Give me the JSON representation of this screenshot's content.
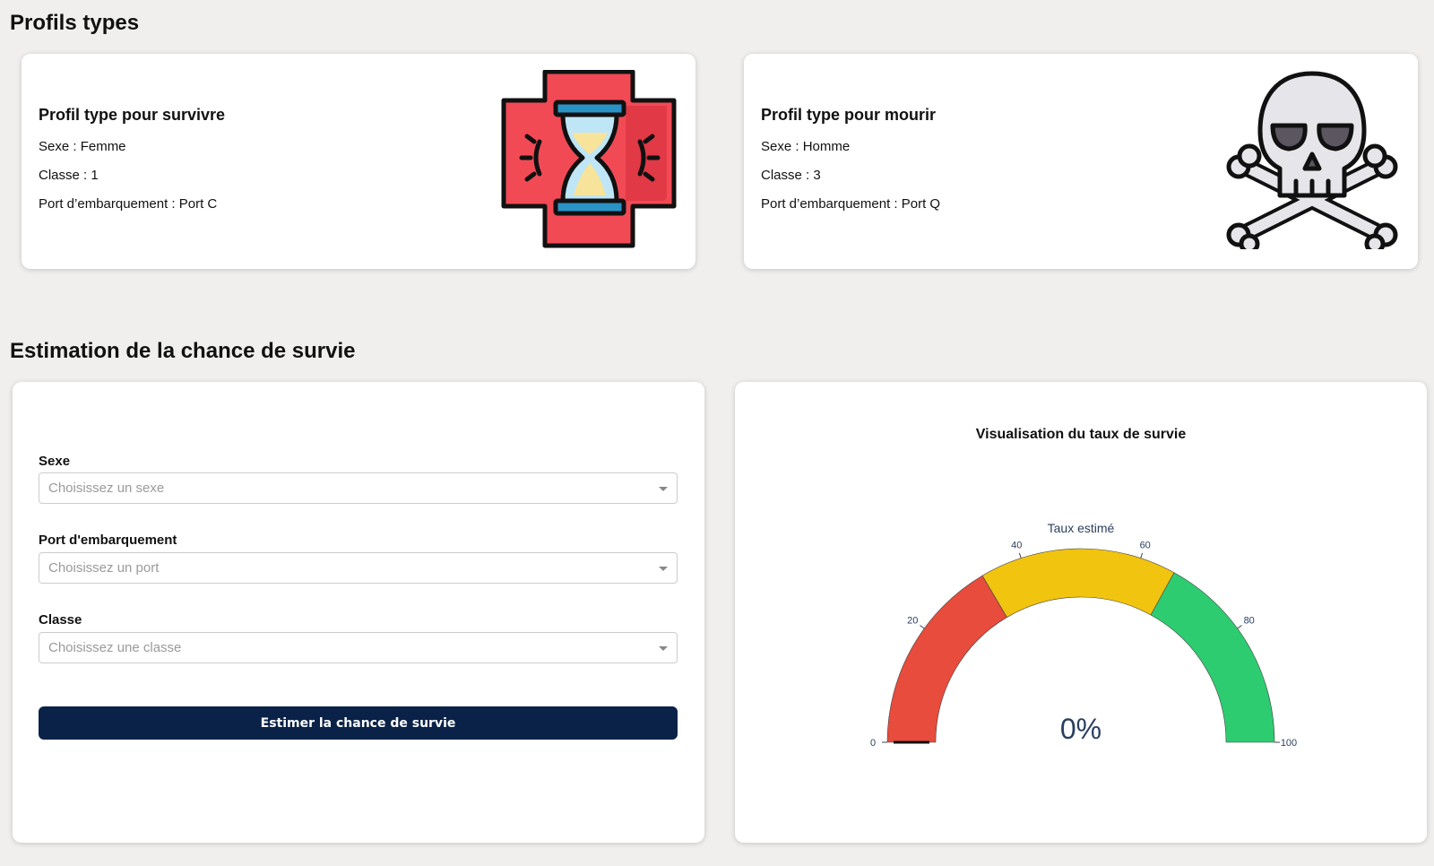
{
  "profils": {
    "heading": "Profils types",
    "survive": {
      "title": "Profil type pour survivre",
      "sexe": "Sexe : Femme",
      "classe": "Classe : 1",
      "port": "Port d’embarquement : Port C",
      "icon": "medical-cross-hourglass-icon"
    },
    "die": {
      "title": "Profil type pour mourir",
      "sexe": "Sexe : Homme",
      "classe": "Classe : 3",
      "port": "Port d’embarquement : Port Q",
      "icon": "skull-crossbones-icon"
    }
  },
  "estimation": {
    "heading": "Estimation de la chance de survie",
    "form": {
      "sexe_label": "Sexe",
      "sexe_placeholder": "Choisissez un sexe",
      "port_label": "Port d'embarquement",
      "port_placeholder": "Choisissez un port",
      "classe_label": "Classe",
      "classe_placeholder": "Choisissez une classe",
      "submit_label": "Estimer la chance de survie"
    },
    "gauge_card_title": "Visualisation du taux de survie"
  },
  "colors": {
    "accent": "#0a2248",
    "low": "#e74c3c",
    "mid": "#f1c40f",
    "high": "#2ecc71",
    "gauge_text": "#2a3f5f"
  },
  "chart_data": {
    "type": "gauge",
    "title": "Taux estimé",
    "value": 0,
    "value_text": "0%",
    "range": [
      0,
      100
    ],
    "ticks": [
      0,
      20,
      40,
      60,
      80,
      100
    ],
    "tick_labels": [
      "0",
      "20",
      "40",
      "60",
      "80",
      "100"
    ],
    "steps": [
      {
        "from": 0,
        "to": 33,
        "color": "#e74c3c"
      },
      {
        "from": 33,
        "to": 66,
        "color": "#f1c40f"
      },
      {
        "from": 66,
        "to": 100,
        "color": "#2ecc71"
      }
    ]
  }
}
